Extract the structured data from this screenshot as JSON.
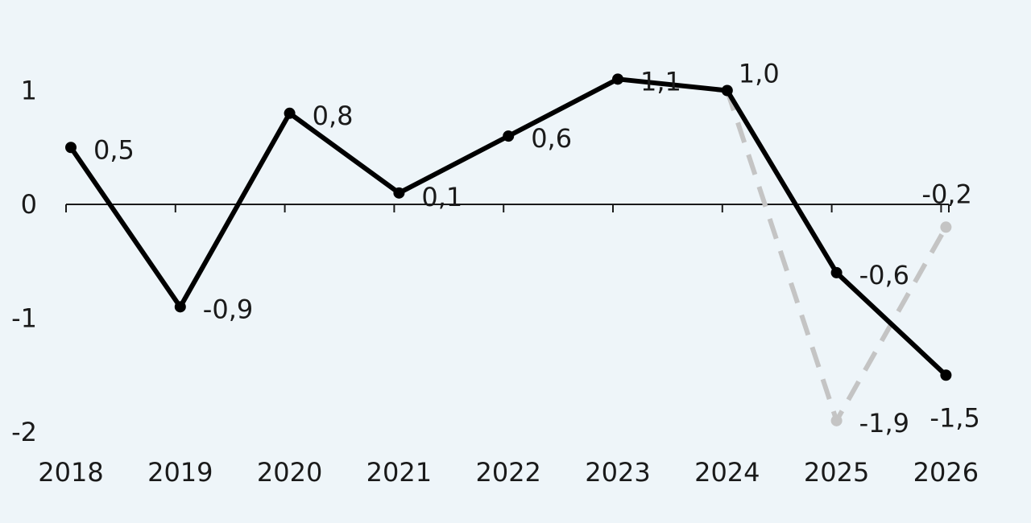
{
  "chart_data": {
    "type": "line",
    "title": "",
    "xlabel": "",
    "ylabel": "",
    "categories": [
      "2018",
      "2019",
      "2020",
      "2021",
      "2022",
      "2023",
      "2024",
      "2025",
      "2026"
    ],
    "ylim": [
      -2,
      1.3
    ],
    "y_ticks": [
      1,
      0,
      -1,
      -2
    ],
    "y_tick_labels": [
      "1",
      "0",
      "-1",
      "-2"
    ],
    "grid": false,
    "legend": "none",
    "series": [
      {
        "color": "#000000",
        "style": "solid",
        "values": [
          0.5,
          -0.9,
          0.8,
          0.1,
          0.6,
          1.1,
          1.0,
          -0.6,
          -1.5
        ],
        "labels": [
          "0,5",
          "-0,9",
          "0,8",
          "0,1",
          "0,6",
          "1,1",
          "1,0",
          "-0,6",
          "-1,5"
        ]
      },
      {
        "color": "#c4c4c4",
        "style": "dashed",
        "values": [
          null,
          null,
          null,
          null,
          null,
          null,
          1.0,
          -1.9,
          -0.2
        ],
        "labels": [
          null,
          null,
          null,
          null,
          null,
          null,
          null,
          "-1,9",
          "-0,2"
        ]
      }
    ]
  }
}
